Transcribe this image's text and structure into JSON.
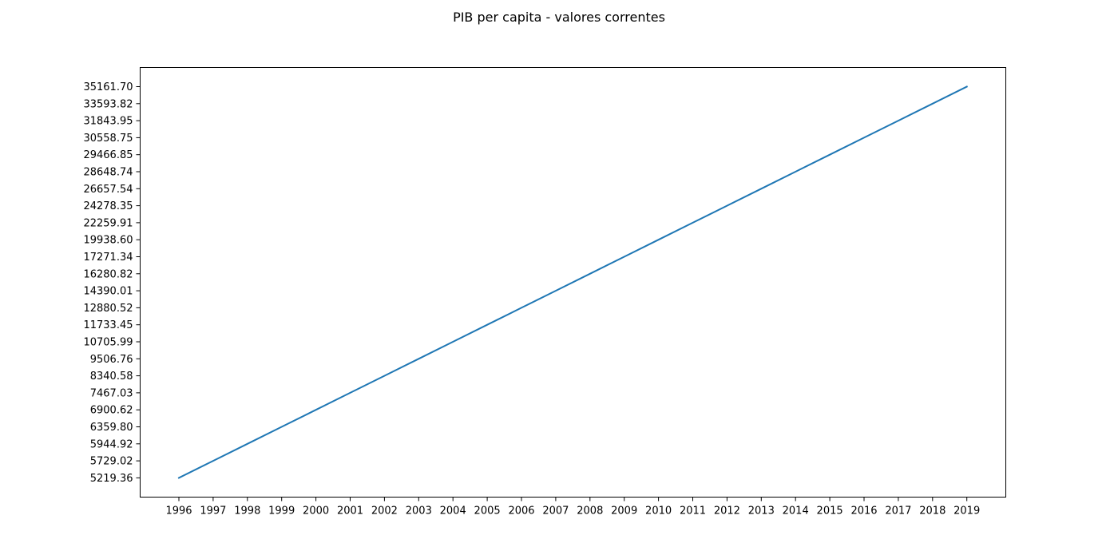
{
  "chart_data": {
    "type": "line",
    "title": "PIB per capita - valores correntes",
    "xlabel": "",
    "ylabel": "",
    "grid": false,
    "x": [
      "1996",
      "1997",
      "1998",
      "1999",
      "2000",
      "2001",
      "2002",
      "2003",
      "2004",
      "2005",
      "2006",
      "2007",
      "2008",
      "2009",
      "2010",
      "2011",
      "2012",
      "2013",
      "2014",
      "2015",
      "2016",
      "2017",
      "2018",
      "2019"
    ],
    "series": [
      {
        "values": [
          "5219.36",
          "5729.02",
          "5944.92",
          "6359.80",
          "6900.62",
          "7467.03",
          "8340.58",
          "9506.76",
          "10705.99",
          "11733.45",
          "12880.52",
          "14390.01",
          "16280.82",
          "17271.34",
          "19938.60",
          "22259.91",
          "24278.35",
          "26657.54",
          "28648.74",
          "29466.85",
          "30558.75",
          "31843.95",
          "33593.82",
          "35161.70"
        ],
        "color": "#1f77b4"
      }
    ]
  }
}
